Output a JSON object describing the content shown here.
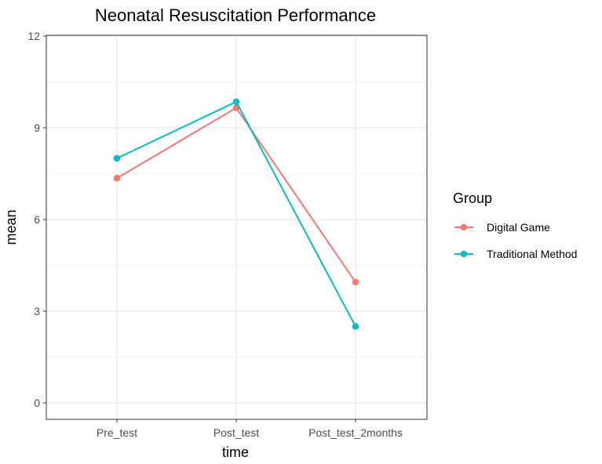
{
  "chart_data": {
    "type": "line",
    "title": "Neonatal Resuscitation Performance",
    "xlabel": "time",
    "ylabel": "mean",
    "categories": [
      "Pre_test",
      "Post_test",
      "Post_test_2months"
    ],
    "ylim": [
      0,
      12
    ],
    "yticks": [
      "0",
      "3",
      "6",
      "9",
      "12"
    ],
    "grid": true,
    "legend": {
      "title": "Group",
      "placement": "right"
    },
    "series": [
      {
        "name": "Digital Game",
        "color": "#F8766D",
        "values": [
          7.35,
          9.65,
          3.95
        ]
      },
      {
        "name": "Traditional Method",
        "color": "#00BFC4",
        "values": [
          8.0,
          9.85,
          2.5
        ]
      }
    ]
  }
}
